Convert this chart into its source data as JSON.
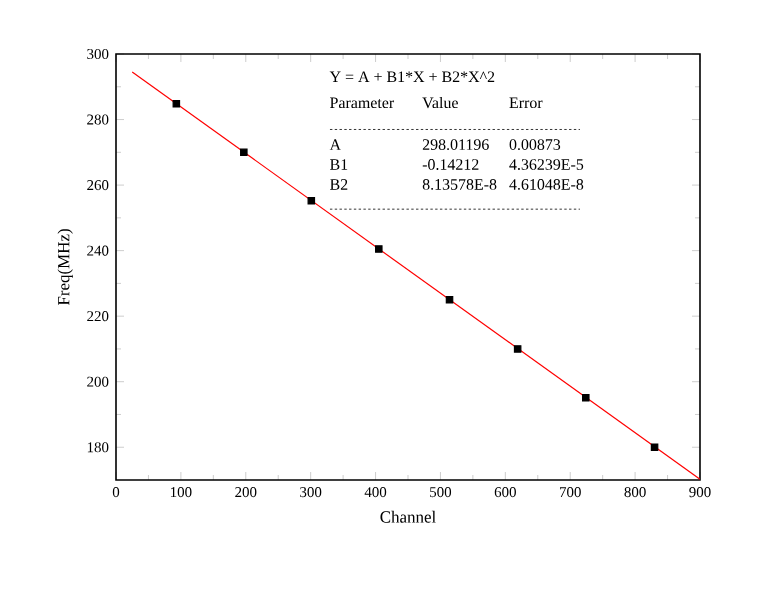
{
  "chart_data": {
    "type": "scatter",
    "xlabel": "Channel",
    "ylabel": "Freq(MHz)",
    "xlim": [
      0,
      900
    ],
    "xticks": [
      0,
      100,
      200,
      300,
      400,
      500,
      600,
      700,
      800,
      900
    ],
    "ylim": [
      170,
      300
    ],
    "yticks": [
      180,
      200,
      220,
      240,
      260,
      280,
      300
    ],
    "grid": false,
    "series": [
      {
        "color": "#000000",
        "marker": "square",
        "x": [
          93,
          197,
          301,
          405,
          514,
          619,
          724,
          830
        ],
        "values": [
          284.8,
          270.0,
          255.2,
          240.5,
          225.0,
          210.0,
          195.1,
          180.0
        ]
      },
      {
        "type": "line",
        "color": "#ff0000",
        "marker": "none",
        "x": [
          25,
          900
        ],
        "values": [
          294.5,
          170.2
        ]
      }
    ],
    "annotations": [
      "Y = A + B1*X + B2*X^2",
      "Parameter",
      "Value",
      "Error",
      "A",
      "298.01196",
      "0.00873",
      "B1",
      "-0.14212",
      "4.36239E-5",
      "B2",
      "8.13578E-8",
      "4.61048E-8"
    ]
  }
}
